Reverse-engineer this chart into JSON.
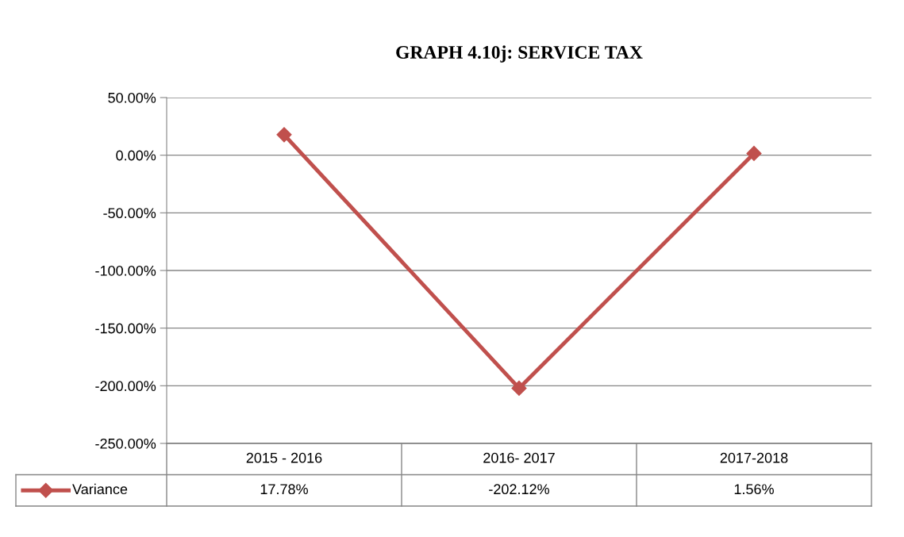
{
  "chart_data": {
    "type": "line",
    "title": "GRAPH 4.10j: SERVICE TAX",
    "categories": [
      "2015 - 2016",
      "2016- 2017",
      "2017-2018"
    ],
    "series": [
      {
        "name": "Variance",
        "color": "#c0504d",
        "values": [
          17.78,
          -202.12,
          1.56
        ],
        "value_labels": [
          "17.78%",
          "-202.12%",
          "1.56%"
        ]
      }
    ],
    "ylim": [
      -250,
      50
    ],
    "yticks": [
      {
        "value": -250,
        "label": "-250.00%"
      },
      {
        "value": -200,
        "label": "-200.00%"
      },
      {
        "value": -150,
        "label": "-150.00%"
      },
      {
        "value": -100,
        "label": "-100.00%"
      },
      {
        "value": -50,
        "label": "-50.00%"
      },
      {
        "value": 0,
        "label": "0.00%"
      },
      {
        "value": 50,
        "label": "50.00%"
      }
    ],
    "grid": "y",
    "marker": "diamond",
    "line_style": "solid",
    "legend": "bottom"
  }
}
